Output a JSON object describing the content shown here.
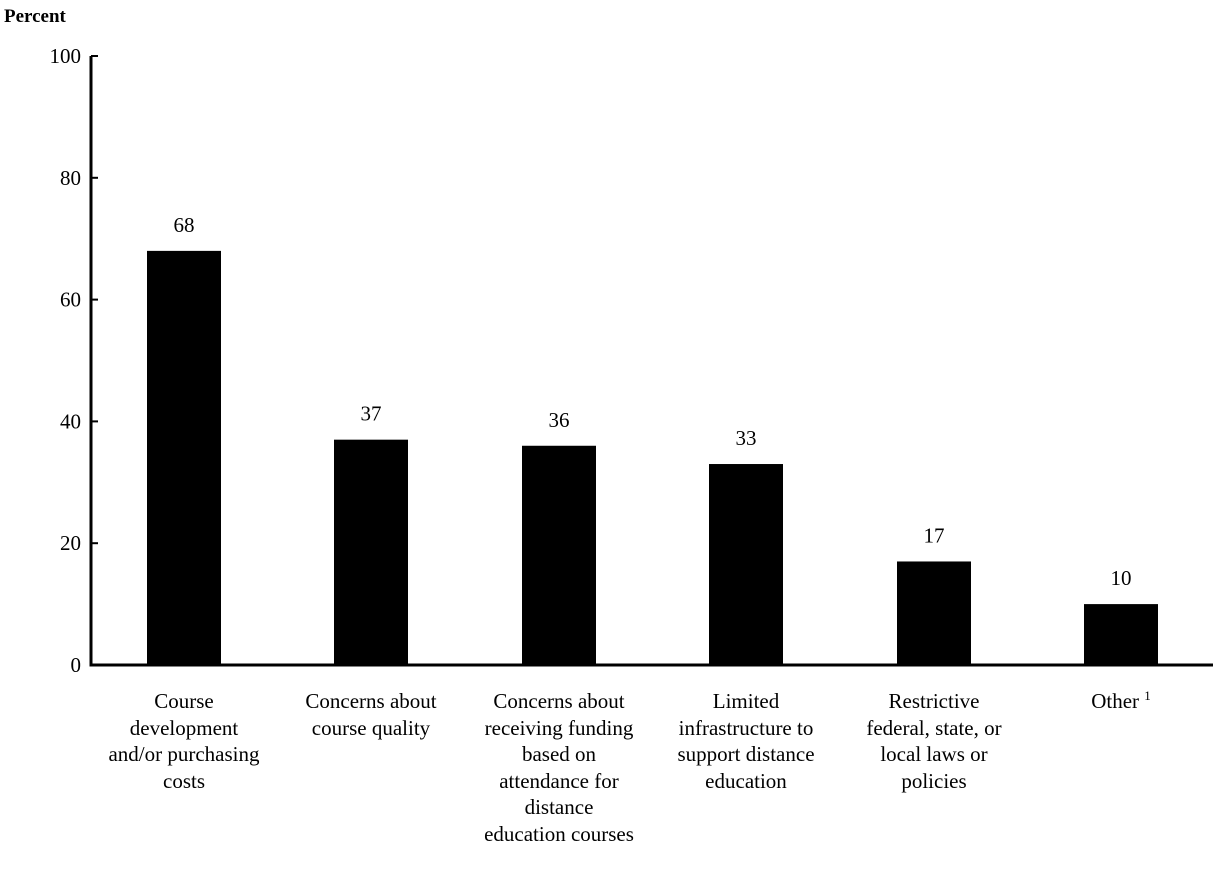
{
  "chart_data": {
    "type": "bar",
    "title": "",
    "ylabel": "Percent",
    "xlabel": "",
    "ylim": [
      0,
      100
    ],
    "yticks": [
      0,
      20,
      40,
      60,
      80,
      100
    ],
    "grid": false,
    "bar_color": "#000000",
    "categories": [
      "Course development and/or purchasing costs",
      "Concerns about course quality",
      "Concerns about receiving funding based on attendance for distance education courses",
      "Limited infrastructure to support distance education",
      "Restrictive federal, state, or local laws or policies",
      "Other"
    ],
    "category_lines": [
      [
        "Course",
        "development",
        "and/or purchasing",
        "costs"
      ],
      [
        "Concerns about",
        "course quality"
      ],
      [
        "Concerns about",
        "receiving funding",
        "based on",
        "attendance for",
        "distance",
        "education courses"
      ],
      [
        "Limited",
        "infrastructure to",
        "support distance",
        "education"
      ],
      [
        "Restrictive",
        "federal, state, or",
        "local laws or",
        "policies"
      ],
      [
        "Other"
      ]
    ],
    "footnote_marks": [
      "",
      "",
      "",
      "",
      "",
      "1"
    ],
    "values": [
      68,
      37,
      36,
      33,
      17,
      10
    ],
    "data_labels": [
      "68",
      "37",
      "36",
      "33",
      "17",
      "10"
    ]
  }
}
